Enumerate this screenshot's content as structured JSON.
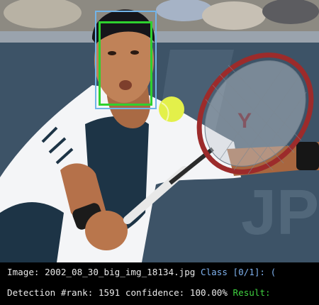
{
  "info_bar": {
    "image_label": "Image:",
    "image_filename": "2002_08_30_big_img_18134.jpg",
    "class_label": "Class",
    "class_value": "[0/1]:",
    "class_trailing": "(",
    "detection_label": "Detection #rank:",
    "rank": "1591",
    "confidence_label": "confidence:",
    "confidence": "100.00%",
    "result_label": "Result:"
  },
  "annotations": {
    "ground_truth_color": "#72b4e8",
    "detection_color": "#2ed12e"
  },
  "theme": {
    "text_color": "#e8e8e8",
    "class_color": "#7fb2ee",
    "result_color": "#3fd23f",
    "bar_background": "#000000"
  }
}
